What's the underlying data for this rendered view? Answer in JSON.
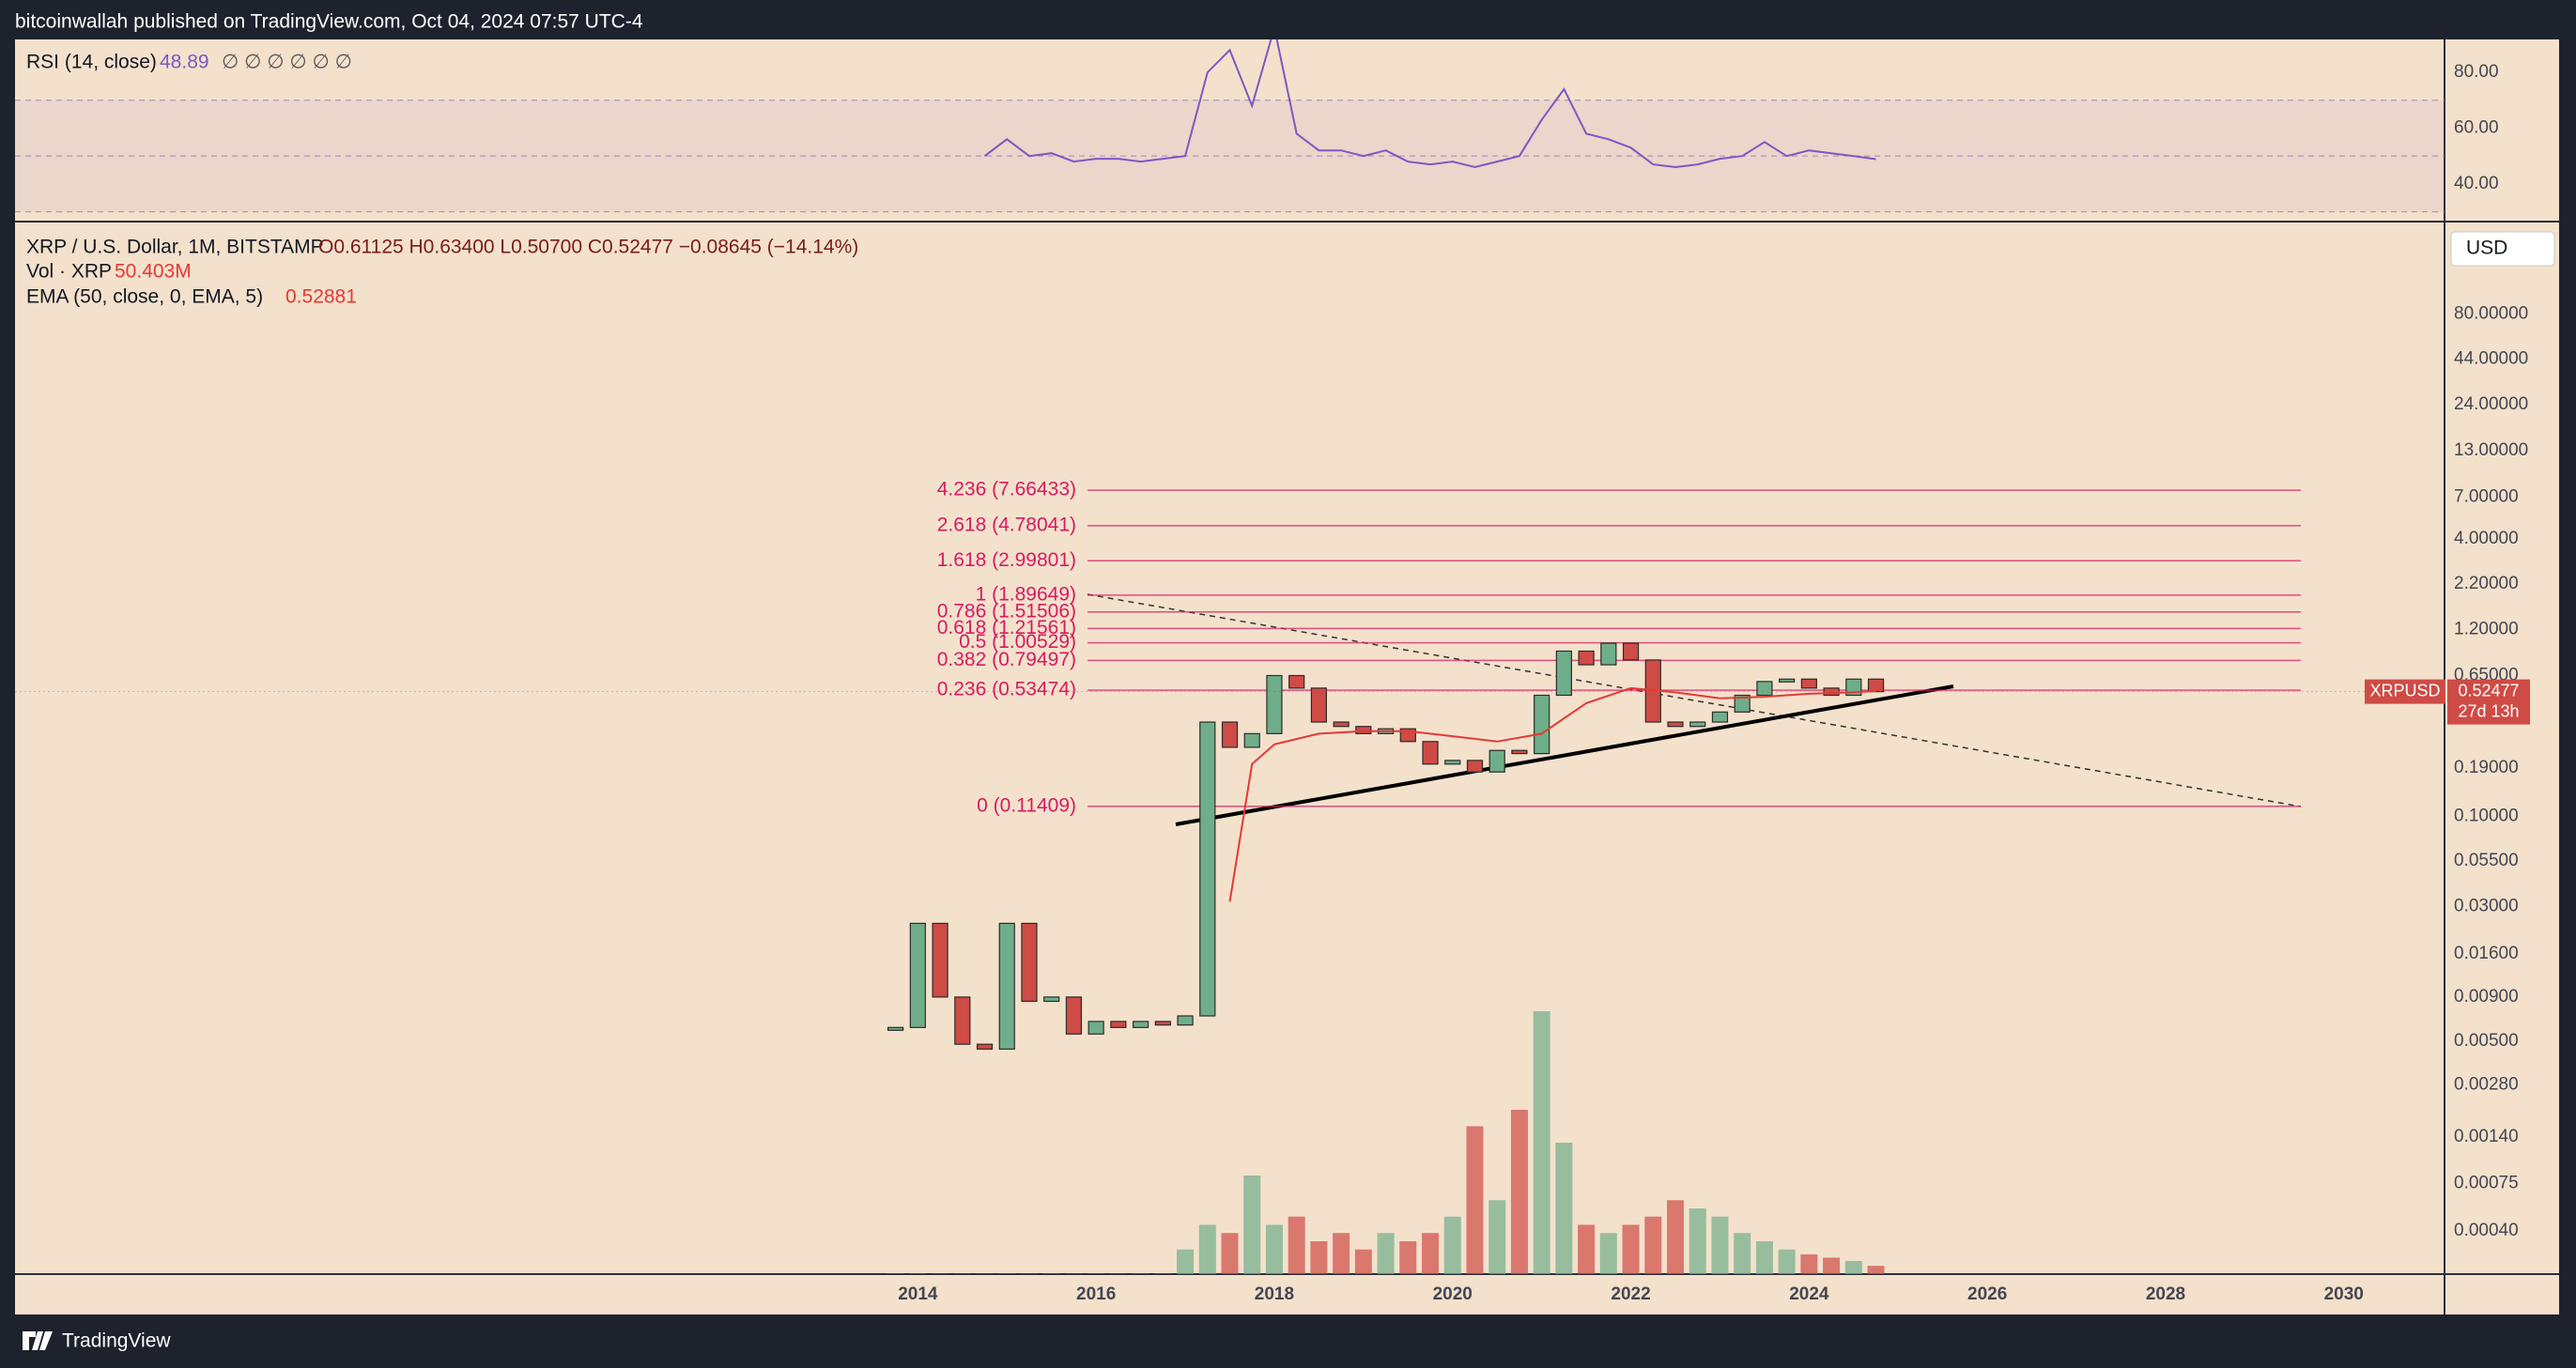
{
  "header": {
    "text": "bitcoinwallah published on TradingView.com, Oct 04, 2024 07:57 UTC-4"
  },
  "footer": {
    "brand": "TradingView"
  },
  "chart_data": [
    {
      "type": "line",
      "title": "RSI (14, close)",
      "extra": "∅ ∅ ∅ ∅ ∅ ∅",
      "x": [
        2014.75,
        2015,
        2015.25,
        2015.5,
        2015.75,
        2016,
        2016.25,
        2016.5,
        2016.75,
        2017,
        2017.25,
        2017.5,
        2017.75,
        2018,
        2018.25,
        2018.5,
        2018.75,
        2019,
        2019.25,
        2019.5,
        2019.75,
        2020,
        2020.25,
        2020.5,
        2020.75,
        2021,
        2021.25,
        2021.5,
        2021.75,
        2022,
        2022.25,
        2022.5,
        2022.75,
        2023,
        2023.25,
        2023.5,
        2023.75,
        2024,
        2024.25,
        2024.5,
        2024.75
      ],
      "series": [
        {
          "color": "#7e57c2",
          "values": [
            50,
            56,
            50,
            51,
            48,
            49,
            49,
            48,
            49,
            50,
            80,
            88,
            68,
            96,
            58,
            52,
            52,
            50,
            52,
            48,
            47,
            48,
            46,
            48,
            50,
            63,
            74,
            58,
            56,
            53,
            47,
            46,
            47,
            49,
            50,
            55,
            50,
            52,
            51,
            50,
            48.89
          ]
        }
      ],
      "xlim": [
        2003.87,
        2031.13
      ],
      "ylim": [
        27.5,
        91.8
      ],
      "yticks": [
        {
          "value": 40,
          "label": "40.00"
        },
        {
          "value": 60,
          "label": "60.00"
        },
        {
          "value": 80,
          "label": "80.00"
        }
      ],
      "band": [
        30,
        70
      ],
      "midline": 50
    },
    {
      "type": "candlestick",
      "title": "XRP / U.S. Dollar, 1M, BITSTAMP",
      "ohlc_text": "O0.61125 H0.63400 L0.50700 C0.52477 −0.08645 (−14.14%)",
      "currency": "USD",
      "log_scale": true,
      "x": [
        2013.75,
        2014,
        2014.25,
        2014.5,
        2014.75,
        2015,
        2015.25,
        2015.5,
        2015.75,
        2016,
        2016.25,
        2016.5,
        2016.75,
        2017,
        2017.25,
        2017.5,
        2017.75,
        2018,
        2018.25,
        2018.5,
        2018.75,
        2019,
        2019.25,
        2019.5,
        2019.75,
        2020,
        2020.25,
        2020.5,
        2020.75,
        2021,
        2021.25,
        2021.5,
        2021.75,
        2022,
        2022.25,
        2022.5,
        2022.75,
        2023,
        2023.25,
        2023.5,
        2023.75,
        2024,
        2024.25,
        2024.5,
        2024.75
      ],
      "series": [
        {
          "name": "XRPUSD",
          "up_color": "#6fae8a",
          "down_color": "#cf4b46",
          "values": [
            0.006,
            0.024,
            0.009,
            0.0048,
            0.0045,
            0.024,
            0.0085,
            0.009,
            0.0055,
            0.0065,
            0.006,
            0.0065,
            0.0062,
            0.007,
            0.35,
            0.25,
            0.3,
            0.65,
            0.55,
            0.35,
            0.33,
            0.3,
            0.32,
            0.27,
            0.2,
            0.21,
            0.18,
            0.24,
            0.23,
            0.5,
            0.9,
            0.75,
            1.0,
            0.8,
            0.35,
            0.33,
            0.35,
            0.4,
            0.5,
            0.6,
            0.62,
            0.55,
            0.5,
            0.62,
            0.52477
          ]
        }
      ],
      "countdown": "27d 13h",
      "volume": {
        "label": "Vol · XRP",
        "value_label": "50.403M",
        "values": [
          2,
          2,
          2,
          2,
          2,
          2,
          2,
          2,
          2,
          2,
          2,
          2,
          3,
          150,
          300,
          250,
          600,
          300,
          350,
          200,
          250,
          150,
          250,
          200,
          250,
          350,
          900,
          450,
          1000,
          1600,
          800,
          300,
          250,
          300,
          350,
          450,
          400,
          350,
          250,
          200,
          150,
          120,
          100,
          80,
          50.403
        ]
      },
      "ema": {
        "label": "EMA (50, close, 0, EMA, 5)",
        "color": "#e53935",
        "x": [
          2017.5,
          2017.75,
          2018,
          2018.5,
          2019,
          2019.5,
          2020,
          2020.5,
          2021,
          2021.5,
          2022,
          2022.5,
          2023,
          2023.5,
          2024,
          2024.5,
          2024.75
        ],
        "values": [
          0.032,
          0.2,
          0.26,
          0.3,
          0.31,
          0.31,
          0.29,
          0.27,
          0.3,
          0.45,
          0.55,
          0.52,
          0.48,
          0.49,
          0.51,
          0.52,
          0.52881
        ]
      },
      "fib": [
        {
          "value": 7.66433,
          "label": "4.236 (7.66433)"
        },
        {
          "value": 4.78041,
          "label": "2.618 (4.78041)"
        },
        {
          "value": 2.99801,
          "label": "1.618 (2.99801)"
        },
        {
          "value": 1.89649,
          "label": "1 (1.89649)"
        },
        {
          "value": 1.51506,
          "label": "0.786 (1.51506)"
        },
        {
          "value": 1.21561,
          "label": "0.618 (1.21561)"
        },
        {
          "value": 1.00529,
          "label": "0.5 (1.00529)"
        },
        {
          "value": 0.79497,
          "label": "0.382 (0.79497)"
        },
        {
          "value": 0.53474,
          "label": "0.236 (0.53474)"
        },
        {
          "value": 0.11409,
          "label": "0 (0.11409)"
        }
      ],
      "fib_color": "#d81b60",
      "xlim": [
        2003.87,
        2031.13
      ],
      "ylim": [
        0.000225,
        260.6
      ],
      "xticks": [
        2014,
        2016,
        2018,
        2020,
        2022,
        2024,
        2026,
        2028,
        2030
      ],
      "yticks": [
        {
          "value": 80,
          "label": "80.00000"
        },
        {
          "value": 44,
          "label": "44.00000"
        },
        {
          "value": 24,
          "label": "24.00000"
        },
        {
          "value": 13,
          "label": "13.00000"
        },
        {
          "value": 7,
          "label": "7.00000"
        },
        {
          "value": 4,
          "label": "4.00000"
        },
        {
          "value": 2.2,
          "label": "2.20000"
        },
        {
          "value": 1.2,
          "label": "1.20000"
        },
        {
          "value": 0.65,
          "label": "0.65000"
        },
        {
          "value": 0.19,
          "label": "0.19000"
        },
        {
          "value": 0.1,
          "label": "0.10000"
        },
        {
          "value": 0.055,
          "label": "0.05500"
        },
        {
          "value": 0.03,
          "label": "0.03000"
        },
        {
          "value": 0.016,
          "label": "0.01600"
        },
        {
          "value": 0.009,
          "label": "0.00900"
        },
        {
          "value": 0.005,
          "label": "0.00500"
        },
        {
          "value": 0.0028,
          "label": "0.00280"
        },
        {
          "value": 0.0014,
          "label": "0.00140"
        },
        {
          "value": 0.00075,
          "label": "0.00075"
        },
        {
          "value": 0.0004,
          "label": "0.00040"
        }
      ]
    }
  ]
}
